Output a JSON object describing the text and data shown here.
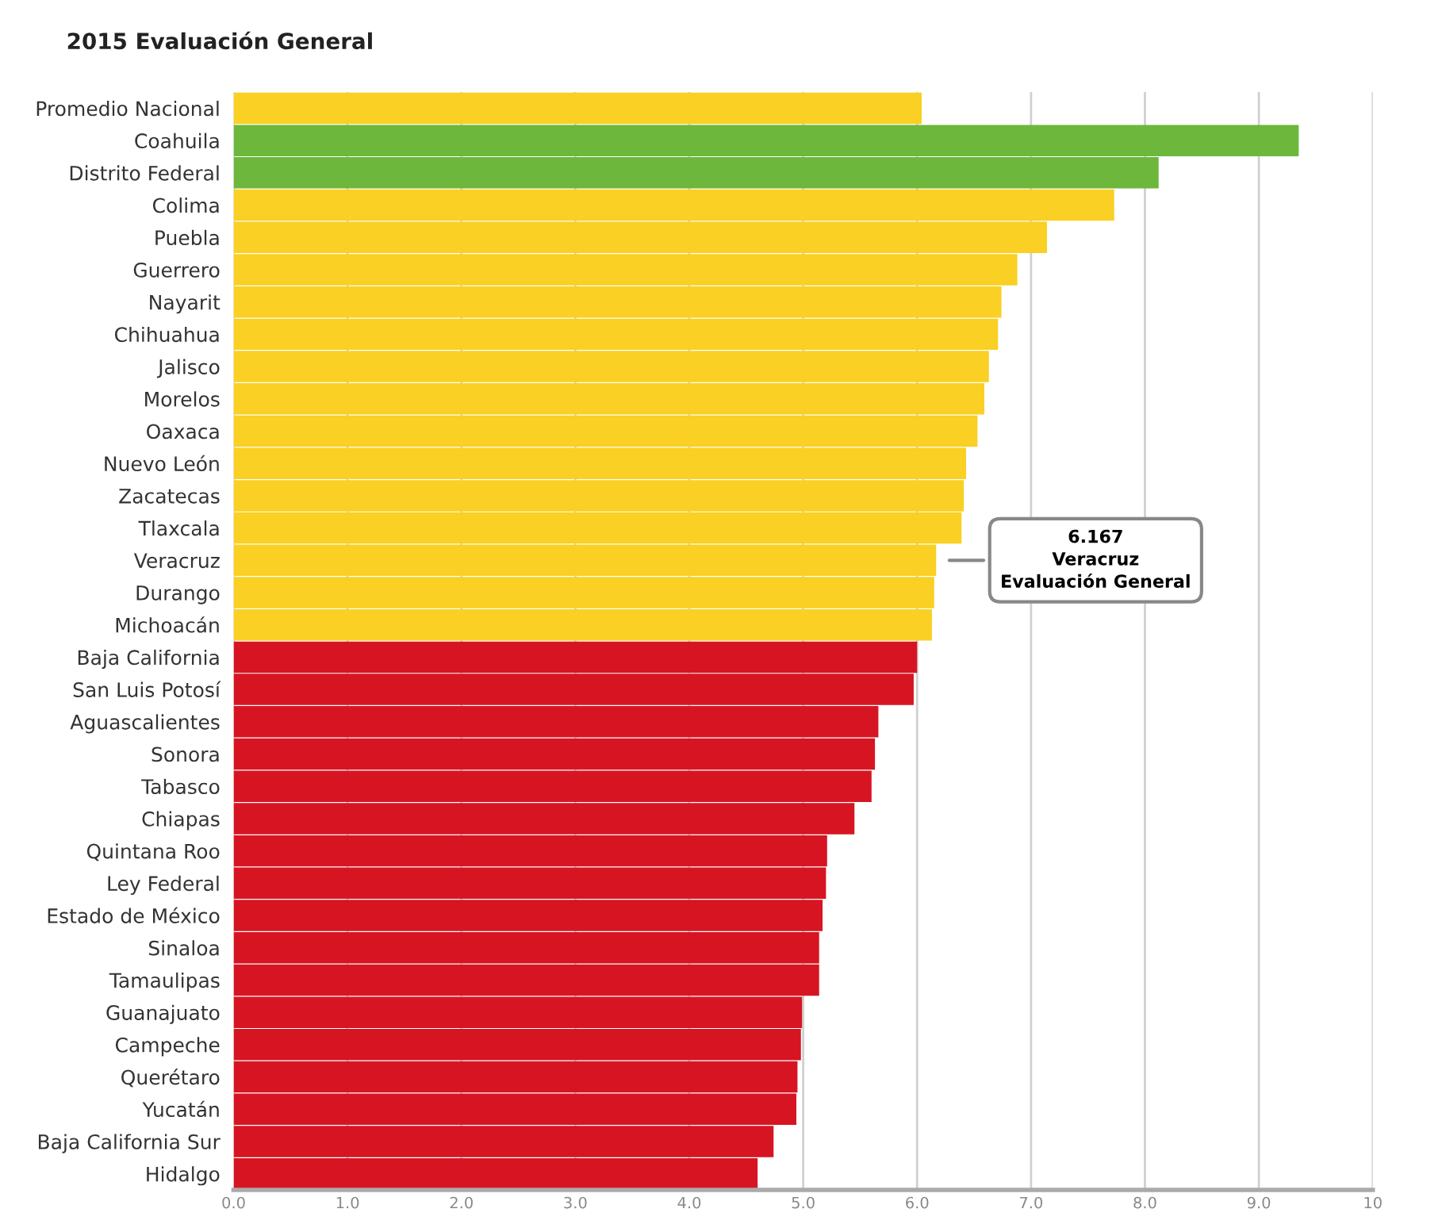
{
  "chart_data": {
    "type": "bar",
    "orientation": "horizontal",
    "title": "2015 Evaluación General",
    "categories": [
      "Promedio Nacional",
      "Coahuila",
      "Distrito Federal",
      "Colima",
      "Puebla",
      "Guerrero",
      "Nayarit",
      "Chihuahua",
      "Jalisco",
      "Morelos",
      "Oaxaca",
      "Nuevo León",
      "Zacatecas",
      "Tlaxcala",
      "Veracruz",
      "Durango",
      "Michoacán",
      "Baja California",
      "San Luis Potosí",
      "Aguascalientes",
      "Sonora",
      "Tabasco",
      "Chiapas",
      "Quintana Roo",
      "Ley Federal",
      "Estado de México",
      "Sinaloa",
      "Tamaulipas",
      "Guanajuato",
      "Campeche",
      "Querétaro",
      "Yucatán",
      "Baja California Sur",
      "Hidalgo"
    ],
    "values": [
      6.04,
      9.35,
      8.12,
      7.73,
      7.14,
      6.88,
      6.74,
      6.71,
      6.63,
      6.59,
      6.53,
      6.43,
      6.41,
      6.39,
      6.167,
      6.15,
      6.13,
      6.0,
      5.97,
      5.66,
      5.63,
      5.6,
      5.45,
      5.21,
      5.2,
      5.17,
      5.14,
      5.14,
      4.99,
      4.98,
      4.95,
      4.94,
      4.74,
      4.6
    ],
    "colors": [
      "#f9d023",
      "#6db73c",
      "#6db73c",
      "#f9d023",
      "#f9d023",
      "#f9d023",
      "#f9d023",
      "#f9d023",
      "#f9d023",
      "#f9d023",
      "#f9d023",
      "#f9d023",
      "#f9d023",
      "#f9d023",
      "#f9d023",
      "#f9d023",
      "#f9d023",
      "#d71522",
      "#d71522",
      "#d71522",
      "#d71522",
      "#d71522",
      "#d71522",
      "#d71522",
      "#d71522",
      "#d71522",
      "#d71522",
      "#d71522",
      "#d71522",
      "#d71522",
      "#d71522",
      "#d71522",
      "#d71522",
      "#d71522"
    ],
    "xlim": [
      0,
      10
    ],
    "xticks": [
      {
        "value": 0,
        "label": "0.0"
      },
      {
        "value": 1,
        "label": "1.0"
      },
      {
        "value": 2,
        "label": "2.0"
      },
      {
        "value": 3,
        "label": "3.0"
      },
      {
        "value": 4,
        "label": "4.0"
      },
      {
        "value": 5,
        "label": "5.0"
      },
      {
        "value": 6,
        "label": "6.0"
      },
      {
        "value": 7,
        "label": "7.0"
      },
      {
        "value": 8,
        "label": "8.0"
      },
      {
        "value": 9,
        "label": "9.0"
      },
      10
    ],
    "grid": "x",
    "annotations": [
      {
        "text": "6.167\nVeracruz\nEvaluación General",
        "x": 6.167,
        "y": "Veracruz"
      }
    ]
  }
}
